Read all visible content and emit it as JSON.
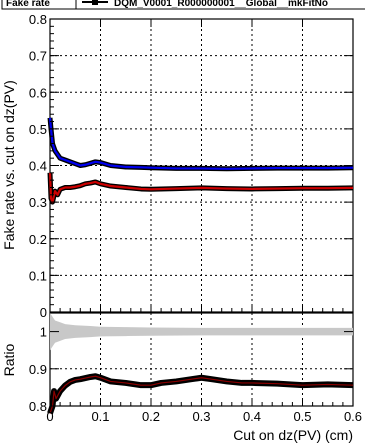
{
  "chart_data": [
    {
      "type": "line",
      "title_fragment": "Fake rate",
      "legend_entries": [
        "DQM_V0001_R000000001__Global__mkFitNo"
      ],
      "ylabel": "Fake rate vs. cut on dz(PV)",
      "xlim": [
        0,
        0.6
      ],
      "ylim": [
        0,
        0.8
      ],
      "yticks": [
        "0",
        "0.1",
        "0.2",
        "0.3",
        "0.4",
        "0.5",
        "0.6",
        "0.7",
        "0.8"
      ],
      "grid": true,
      "series": [
        {
          "color": "#0000ee",
          "x": [
            0.0,
            0.002,
            0.005,
            0.01,
            0.015,
            0.02,
            0.03,
            0.04,
            0.05,
            0.06,
            0.07,
            0.08,
            0.09,
            0.1,
            0.12,
            0.15,
            0.18,
            0.2,
            0.25,
            0.3,
            0.35,
            0.4,
            0.45,
            0.5,
            0.55,
            0.6
          ],
          "y": [
            0.53,
            0.5,
            0.46,
            0.44,
            0.43,
            0.42,
            0.415,
            0.41,
            0.405,
            0.4,
            0.402,
            0.406,
            0.41,
            0.408,
            0.4,
            0.396,
            0.395,
            0.394,
            0.392,
            0.392,
            0.391,
            0.392,
            0.393,
            0.393,
            0.393,
            0.394
          ]
        },
        {
          "color": "#cc0000",
          "x": [
            0.0,
            0.002,
            0.005,
            0.01,
            0.015,
            0.02,
            0.03,
            0.04,
            0.05,
            0.06,
            0.07,
            0.08,
            0.09,
            0.1,
            0.12,
            0.15,
            0.18,
            0.2,
            0.25,
            0.3,
            0.35,
            0.4,
            0.45,
            0.5,
            0.55,
            0.6
          ],
          "y": [
            0.38,
            0.31,
            0.3,
            0.33,
            0.32,
            0.335,
            0.34,
            0.34,
            0.342,
            0.345,
            0.35,
            0.352,
            0.355,
            0.35,
            0.344,
            0.34,
            0.336,
            0.335,
            0.337,
            0.339,
            0.337,
            0.336,
            0.337,
            0.338,
            0.338,
            0.339
          ]
        }
      ]
    },
    {
      "type": "line",
      "xlabel": "Cut on dz(PV) (cm)",
      "ylabel": "Ratio",
      "xlim": [
        0,
        0.6
      ],
      "ylim": [
        0.8,
        1.05
      ],
      "xticks": [
        "0",
        "0.1",
        "0.2",
        "0.3",
        "0.4",
        "0.5",
        "0.6"
      ],
      "yticks": [
        "0.8",
        "0.9",
        "1"
      ],
      "grid": true,
      "band": {
        "color": "#c8c8c8",
        "x": [
          0.0,
          0.005,
          0.01,
          0.02,
          0.03,
          0.05,
          0.08,
          0.1,
          0.15,
          0.2,
          0.3,
          0.4,
          0.5,
          0.6
        ],
        "low": [
          0.95,
          0.96,
          0.97,
          0.975,
          0.98,
          0.983,
          0.985,
          0.987,
          0.988,
          0.989,
          0.99,
          0.99,
          0.99,
          0.99
        ],
        "high": [
          1.05,
          1.04,
          1.03,
          1.025,
          1.02,
          1.017,
          1.015,
          1.013,
          1.012,
          1.011,
          1.01,
          1.01,
          1.01,
          1.01
        ]
      },
      "series": [
        {
          "color": "#000000",
          "x": [
            0.0,
            0.005,
            0.008,
            0.012,
            0.02,
            0.03,
            0.04,
            0.05,
            0.06,
            0.07,
            0.08,
            0.09,
            0.1,
            0.12,
            0.15,
            0.18,
            0.2,
            0.22,
            0.25,
            0.28,
            0.3,
            0.32,
            0.35,
            0.38,
            0.4,
            0.45,
            0.5,
            0.55,
            0.6
          ],
          "y": [
            0.78,
            0.8,
            0.84,
            0.82,
            0.84,
            0.855,
            0.865,
            0.87,
            0.872,
            0.875,
            0.878,
            0.88,
            0.876,
            0.866,
            0.862,
            0.856,
            0.856,
            0.862,
            0.866,
            0.872,
            0.876,
            0.872,
            0.866,
            0.862,
            0.862,
            0.86,
            0.856,
            0.858,
            0.856
          ]
        }
      ]
    }
  ]
}
